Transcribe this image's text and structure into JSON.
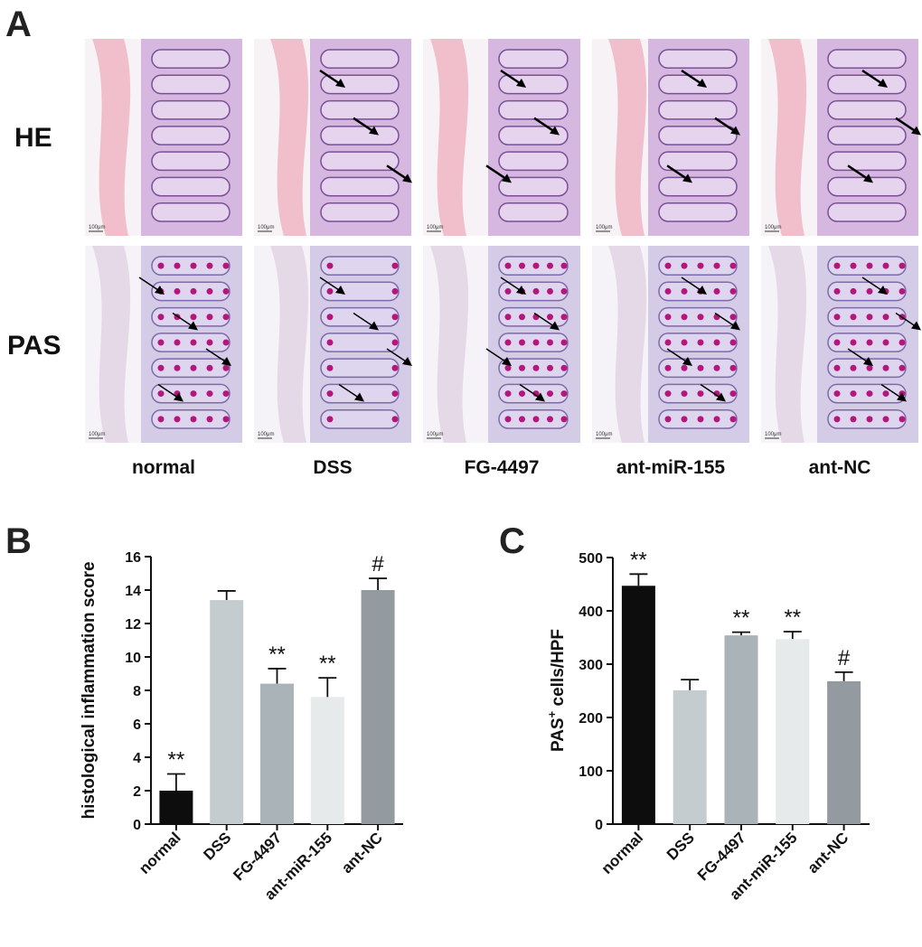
{
  "figure": {
    "panel_labels": {
      "a": "A",
      "b": "B",
      "c": "C"
    },
    "stain_rows": [
      "HE",
      "PAS"
    ],
    "groups": [
      "normal",
      "DSS",
      "FG-4497",
      "ant-miR-155",
      "ant-NC"
    ],
    "scale_bar_text": "100μm"
  },
  "colors": {
    "normal": "#0d0d0d",
    "DSS": "#c5ccd0",
    "FG-4497": "#aab3b7",
    "ant-miR-155": "#e6eaea",
    "ant-NC": "#939ba0",
    "he_tissue": "#c9a3d8",
    "he_muscle": "#efb8c8",
    "pas_tissue": "#c8bfe0",
    "pas_goblet": "#b3177c"
  },
  "chart_data": [
    {
      "type": "bar",
      "panel": "B",
      "categories": [
        "normal",
        "DSS",
        "FG-4497",
        "ant-miR-155",
        "ant-NC"
      ],
      "values": [
        2.0,
        13.4,
        8.4,
        7.6,
        14.0
      ],
      "error": [
        1.0,
        0.55,
        0.9,
        1.15,
        0.7
      ],
      "significance": [
        "**",
        "",
        "**",
        "**",
        "#"
      ],
      "ylabel": "histological inflammation score",
      "ylim": [
        0,
        16
      ],
      "yticks": [
        0,
        2,
        4,
        6,
        8,
        10,
        12,
        14,
        16
      ],
      "grid": false
    },
    {
      "type": "bar",
      "panel": "C",
      "categories": [
        "normal",
        "DSS",
        "FG-4497",
        "ant-miR-155",
        "ant-NC"
      ],
      "values": [
        447,
        251,
        354,
        347,
        268
      ],
      "error": [
        22,
        20,
        6,
        14,
        17
      ],
      "significance": [
        "**",
        "",
        "**",
        "**",
        "#"
      ],
      "ylabel_main": "PAS",
      "ylabel_sup": "+",
      "ylabel_rest": " cells/HPF",
      "ylim": [
        0,
        500
      ],
      "yticks": [
        0,
        100,
        200,
        300,
        400,
        500
      ],
      "grid": false
    }
  ]
}
